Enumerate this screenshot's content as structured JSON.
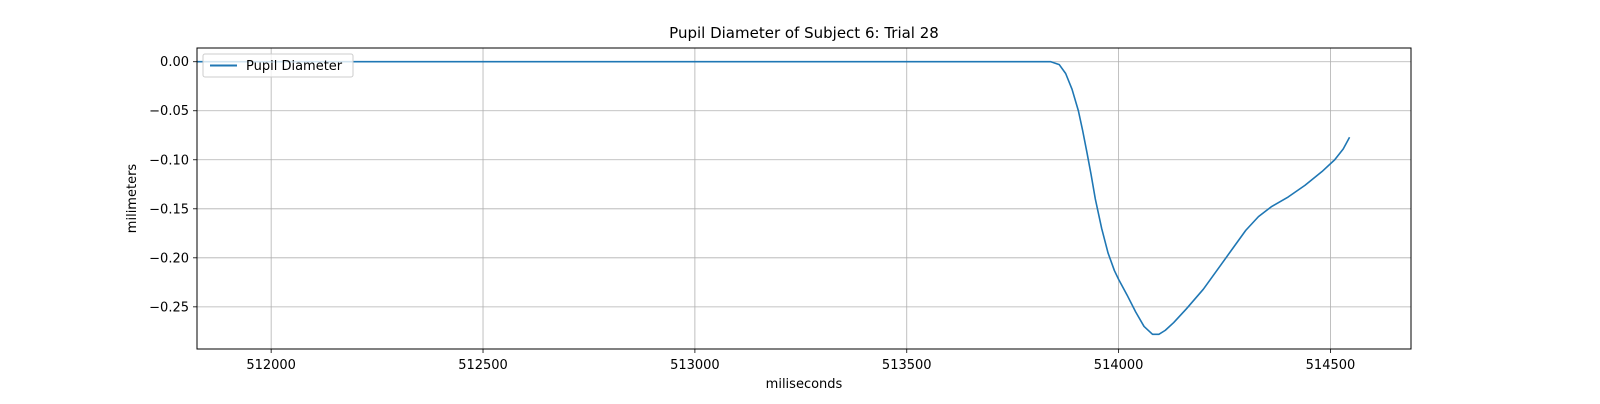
{
  "chart_data": {
    "type": "line",
    "title": "Pupil Diameter of Subject 6: Trial 28",
    "xlabel": "miliseconds",
    "ylabel": "milimeters",
    "xlim": [
      511825,
      514690
    ],
    "ylim": [
      -0.293,
      0.014
    ],
    "xticks": [
      512000,
      512500,
      513000,
      513500,
      514000,
      514500
    ],
    "xtick_labels": [
      "512000",
      "512500",
      "513000",
      "513500",
      "514000",
      "514500"
    ],
    "yticks": [
      0.0,
      -0.05,
      -0.1,
      -0.15,
      -0.2,
      -0.25
    ],
    "ytick_labels": [
      "0.00",
      "−0.05",
      "−0.10",
      "−0.15",
      "−0.20",
      "−0.25"
    ],
    "grid": true,
    "legend_position": "upper-left",
    "series": [
      {
        "name": "Pupil Diameter",
        "color": "#1f77b4",
        "x": [
          511825,
          512000,
          512500,
          513000,
          513500,
          513800,
          513840,
          513860,
          513875,
          513890,
          513905,
          513915,
          513925,
          513935,
          513945,
          513960,
          513975,
          513990,
          514000,
          514020,
          514040,
          514060,
          514080,
          514095,
          514110,
          514130,
          514160,
          514200,
          514240,
          514270,
          514300,
          514330,
          514360,
          514400,
          514440,
          514480,
          514510,
          514530,
          514545
        ],
        "y": [
          0.0,
          0.0,
          0.0,
          0.0,
          0.0,
          0.0,
          0.0,
          -0.003,
          -0.012,
          -0.028,
          -0.05,
          -0.07,
          -0.092,
          -0.115,
          -0.14,
          -0.17,
          -0.195,
          -0.213,
          -0.222,
          -0.238,
          -0.255,
          -0.27,
          -0.278,
          -0.278,
          -0.274,
          -0.266,
          -0.252,
          -0.232,
          -0.208,
          -0.19,
          -0.172,
          -0.158,
          -0.148,
          -0.138,
          -0.126,
          -0.112,
          -0.1,
          -0.089,
          -0.077
        ]
      }
    ]
  }
}
